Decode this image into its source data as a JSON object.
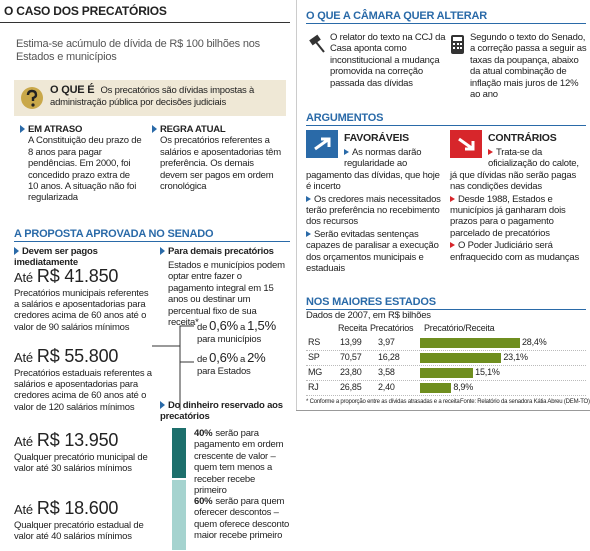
{
  "left": {
    "title": "O CASO DOS PRECATÓRIOS",
    "subtitle": "Estima-se acúmulo de dívida de R$ 100 bilhões nos Estados e municípios",
    "what": {
      "label": "O QUE É",
      "text": "Os precatórios são dívidas impostas à administração pública por decisões judiciais"
    },
    "late": {
      "heading": "EM ATRASO",
      "text": "A Constituição deu prazo de 8 anos para pagar pendências. Em 2000, foi concedido prazo extra de 10 anos. A situação não foi regularizada"
    },
    "rule": {
      "heading": "REGRA ATUAL",
      "text": "Os precatórios referentes a salários e aposentadorias têm preferência. Os demais devem ser pagos em ordem cronológica"
    },
    "proposal": {
      "heading": "A PROPOSTA APROVADA NO SENADO",
      "immediate": {
        "heading": "Devem ser pagos imediatamente",
        "items": [
          {
            "prefix": "Até",
            "amount": "R$ 41.850",
            "text": "Precatórios municipais referentes a salários e aposentadorias para credores acima de 60 anos até o valor de 90 salários mínimos"
          },
          {
            "prefix": "Até",
            "amount": "R$ 55.800",
            "text": "Precatórios estaduais referentes a salários e aposentadorias para credores acima de 60 anos até o valor de 120 salários mínimos"
          },
          {
            "prefix": "Até",
            "amount": "R$ 13.950",
            "text": "Qualquer precatório municipal de valor até 30 salários mínimos"
          },
          {
            "prefix": "Até",
            "amount": "R$ 18.600",
            "text": "Qualquer precatório estadual de valor até 40 salários mínimos"
          }
        ]
      },
      "others": {
        "heading": "Para demais precatórios",
        "text": "Estados e municípios podem optar entre fazer o pagamento integral em 15 anos ou destinar um percentual fixo de sua receita*",
        "options": [
          {
            "from": "de",
            "low": "0,6%",
            "to": "a",
            "high": "1,5%",
            "text": "para municípios"
          },
          {
            "from": "de",
            "low": "0,6%",
            "to": "a",
            "high": "2%",
            "text": "para Estados"
          }
        ],
        "reserved": "Do dinheiro reservado aos precatórios",
        "shares": [
          {
            "pct": "40%",
            "text": "serão para pagamento em ordem crescente de valor – quem tem menos a receber recebe primeiro"
          },
          {
            "pct": "60%",
            "text": "serão para quem oferecer descontos – quem oferece desconto maior recebe primeiro"
          }
        ]
      }
    }
  },
  "right": {
    "title": "O QUE A CÂMARA QUER ALTERAR",
    "changes": [
      "O relator do texto na CCJ da Casa aponta como inconstitucional a mudança promovida na correção passada das dívidas",
      "Segundo o texto do Senado, a correção passa a seguir as taxas da poupança, abaixo da atual combinação de inflação mais juros de 12% ao ano"
    ],
    "arguments": {
      "heading": "ARGUMENTOS",
      "pro": {
        "label": "FAVORÁVEIS",
        "items": [
          "As normas darão regularidade ao pagamento das dívidas, que hoje é incerto",
          "Os credores mais necessitados terão preferência no recebimento dos recursos",
          "Serão evitadas sentenças capazes de paralisar a execução dos orçamentos municipais e estaduais"
        ]
      },
      "con": {
        "label": "CONTRÁRIOS",
        "items": [
          "Trata-se da oficialização do calote, já que dívidas não serão pagas nas condições devidas",
          "Desde 1988, Estados e municípios já ganharam dois prazos para o pagamento parcelado de precatórios",
          "O Poder Judiciário será enfraquecido com as mudanças"
        ]
      }
    },
    "states": {
      "heading": "NOS MAIORES ESTADOS",
      "subtitle": "Dados de 2007, em R$ bilhões",
      "columns": [
        "Receita",
        "Precatórios",
        "Precatório/Receita"
      ],
      "rows": [
        {
          "state": "RS",
          "revenue": "13,99",
          "debt": "3,97",
          "ratio": {
            "value": 28.4,
            "label": "28,4%"
          }
        },
        {
          "state": "SP",
          "revenue": "70,57",
          "debt": "16,28",
          "ratio": {
            "value": 23.1,
            "label": "23,1%"
          }
        },
        {
          "state": "MG",
          "revenue": "23,80",
          "debt": "3,58",
          "ratio": {
            "value": 15.1,
            "label": "15,1%"
          }
        },
        {
          "state": "RJ",
          "revenue": "26,85",
          "debt": "2,40",
          "ratio": {
            "value": 8.9,
            "label": "8,9%"
          }
        }
      ],
      "note": "* Conforme a proporção entre as dívidas atrasadas e a receita",
      "source": "Fonte: Relatório da senadora Kátia Abreu (DEM-TO)"
    }
  }
}
